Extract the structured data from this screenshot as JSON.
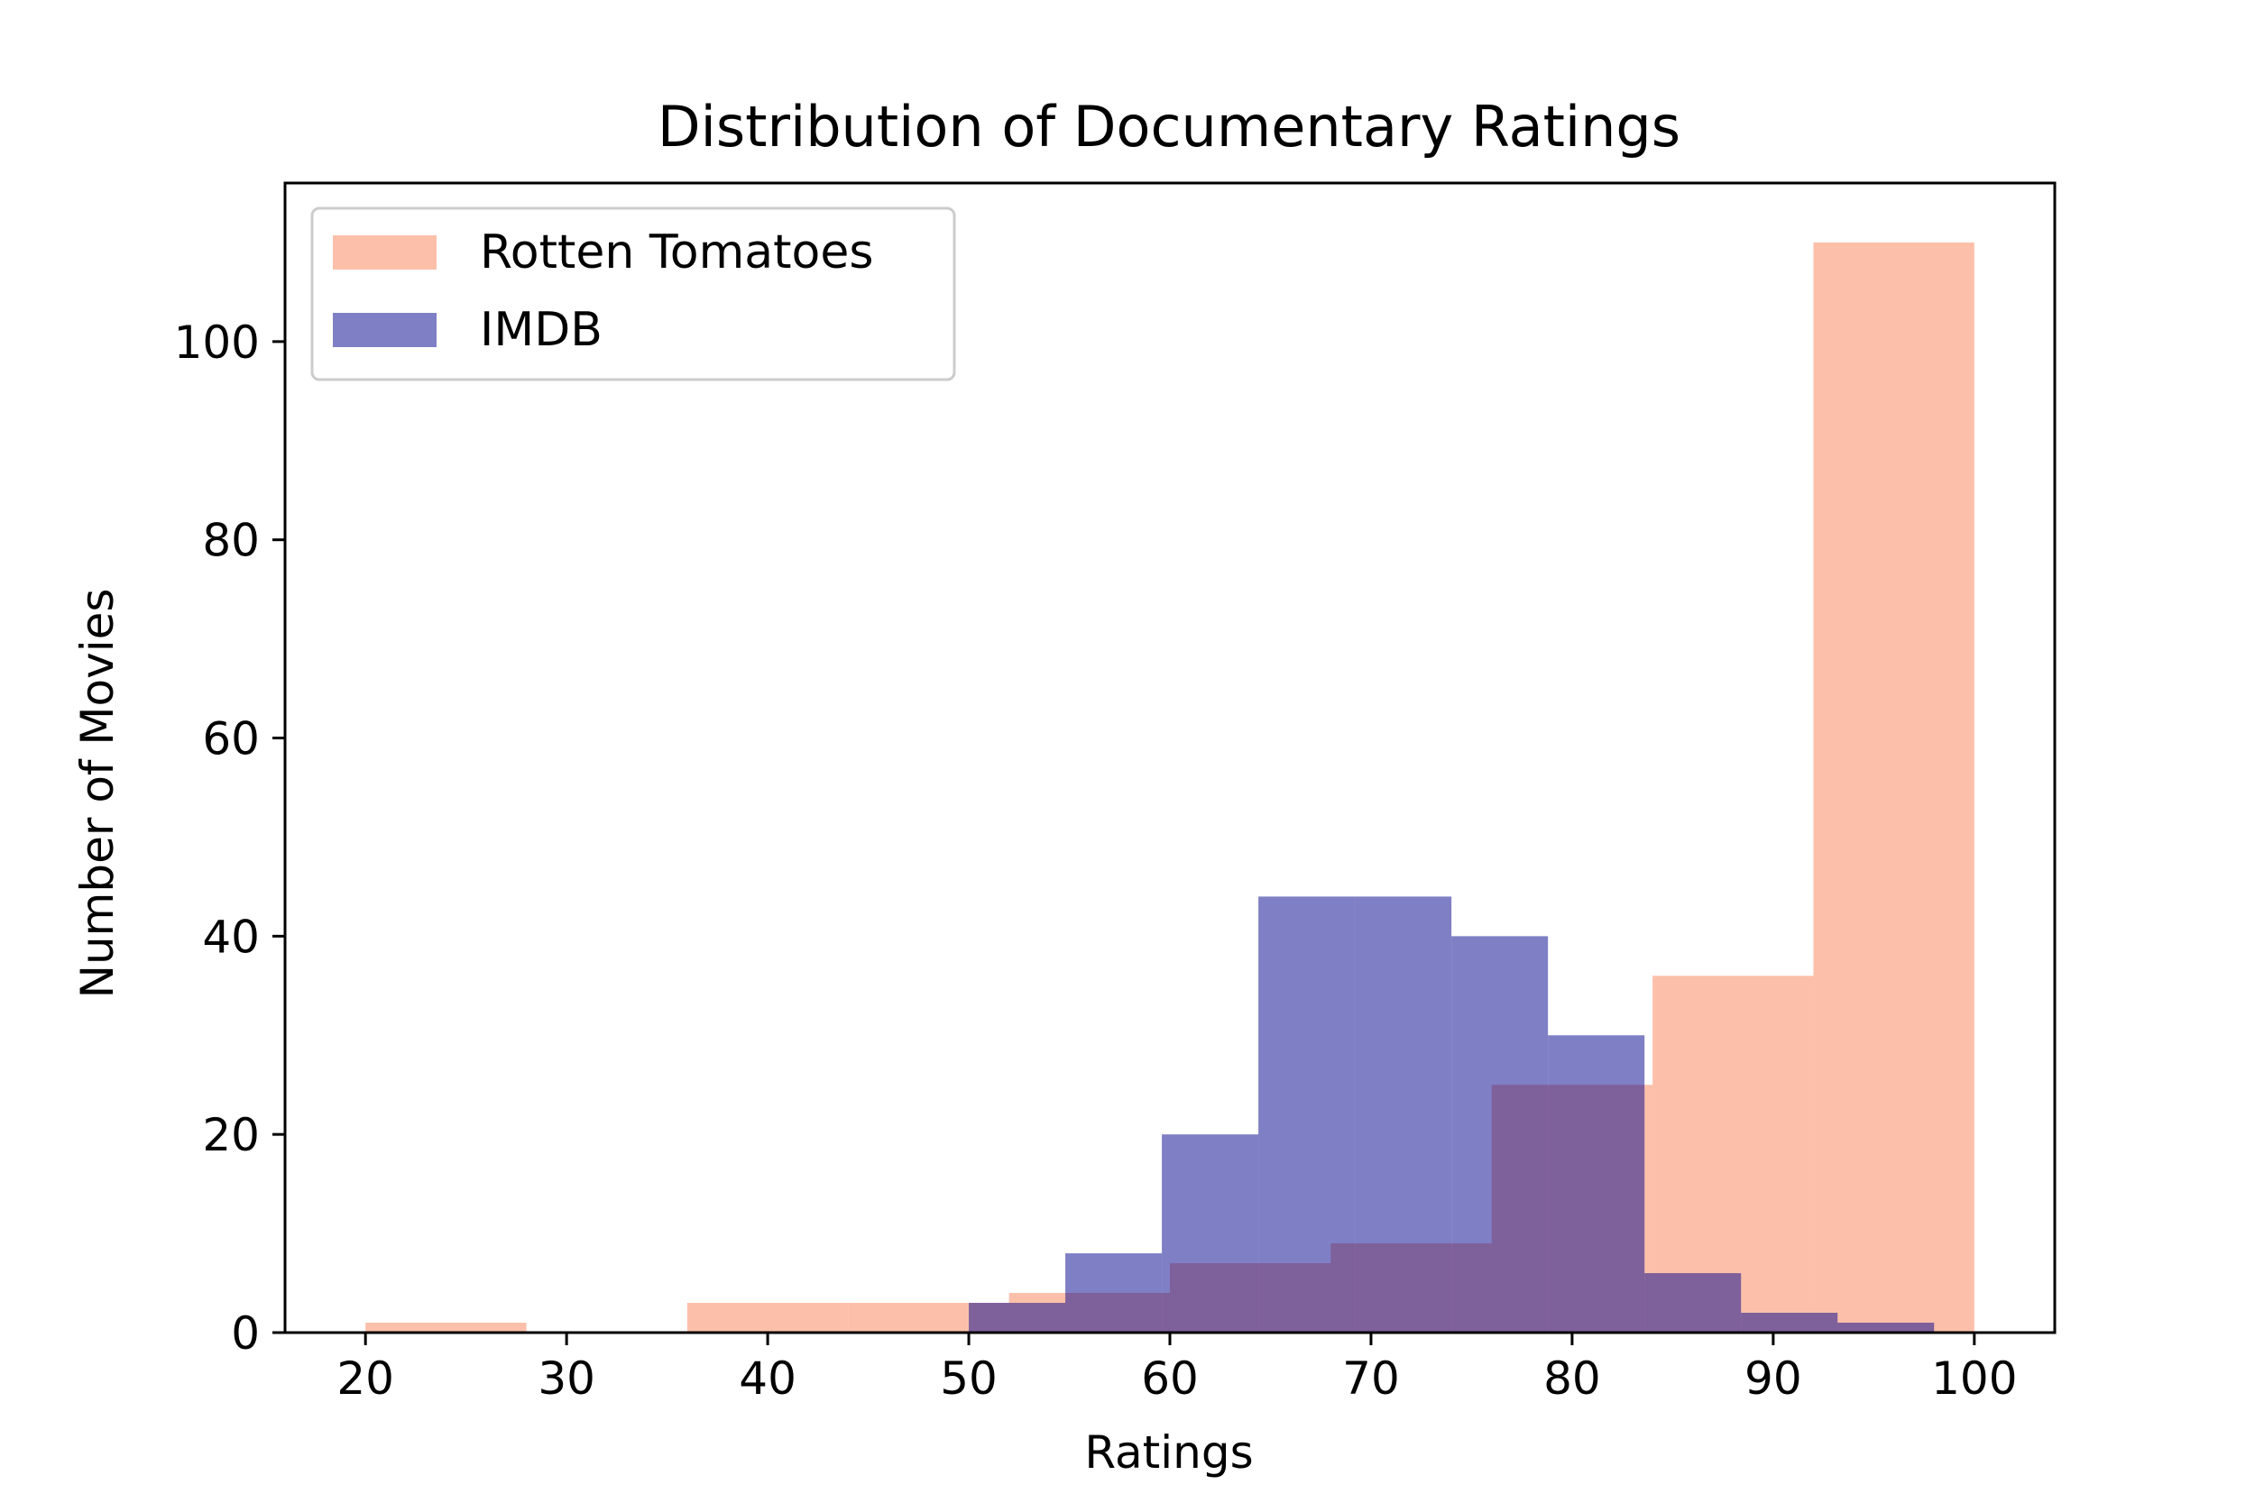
{
  "chart_data": {
    "type": "bar",
    "title": "Distribution of Documentary Ratings",
    "xlabel": "Ratings",
    "ylabel": "Number of Movies",
    "xlim": [
      16,
      104
    ],
    "ylim": [
      0,
      116
    ],
    "xticks": [
      20,
      30,
      40,
      50,
      60,
      70,
      80,
      90,
      100
    ],
    "yticks": [
      0,
      20,
      40,
      60,
      80,
      100
    ],
    "grid": false,
    "legend_placement": "top-left",
    "series": [
      {
        "name": "Rotten Tomatoes",
        "color": "#fa8c64",
        "opacity": 0.55,
        "bins": [
          {
            "x0": 20,
            "x1": 28,
            "value": 1
          },
          {
            "x0": 28,
            "x1": 36,
            "value": 0
          },
          {
            "x0": 36,
            "x1": 44,
            "value": 3
          },
          {
            "x0": 44,
            "x1": 52,
            "value": 3
          },
          {
            "x0": 52,
            "x1": 60,
            "value": 4
          },
          {
            "x0": 60,
            "x1": 68,
            "value": 7
          },
          {
            "x0": 68,
            "x1": 76,
            "value": 9
          },
          {
            "x0": 76,
            "x1": 84,
            "value": 25
          },
          {
            "x0": 84,
            "x1": 92,
            "value": 36
          },
          {
            "x0": 92,
            "x1": 100,
            "value": 110
          }
        ]
      },
      {
        "name": "IMDB",
        "color": "#00008b",
        "opacity": 0.5,
        "bins": [
          {
            "x0": 50.0,
            "x1": 54.8,
            "value": 3
          },
          {
            "x0": 54.8,
            "x1": 59.6,
            "value": 8
          },
          {
            "x0": 59.6,
            "x1": 64.4,
            "value": 20
          },
          {
            "x0": 64.4,
            "x1": 69.2,
            "value": 44
          },
          {
            "x0": 69.2,
            "x1": 74.0,
            "value": 44
          },
          {
            "x0": 74.0,
            "x1": 78.8,
            "value": 40
          },
          {
            "x0": 78.8,
            "x1": 83.6,
            "value": 30
          },
          {
            "x0": 83.6,
            "x1": 88.4,
            "value": 6
          },
          {
            "x0": 88.4,
            "x1": 93.2,
            "value": 2
          },
          {
            "x0": 93.2,
            "x1": 98.0,
            "value": 1
          }
        ]
      }
    ]
  }
}
